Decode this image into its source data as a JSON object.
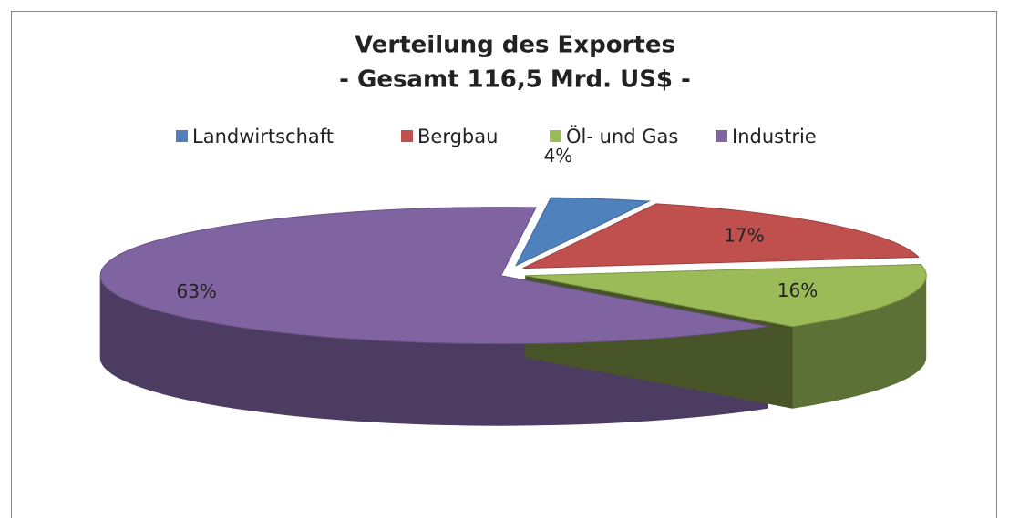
{
  "chart_data": {
    "type": "pie3d",
    "title": "Verteilung des Exportes",
    "subtitle": "- Gesamt 116,5 Mrd. US$ -",
    "categories": [
      "Landwirtschaft",
      "Bergbau",
      "Öl- und Gas",
      "Industrie"
    ],
    "values": [
      4,
      17,
      16,
      63
    ],
    "value_labels": [
      "4%",
      "17%",
      "16%",
      "63%"
    ],
    "colors": [
      "#4f81bd",
      "#c0504d",
      "#9bbb59",
      "#8064a2"
    ],
    "legend": "top"
  }
}
